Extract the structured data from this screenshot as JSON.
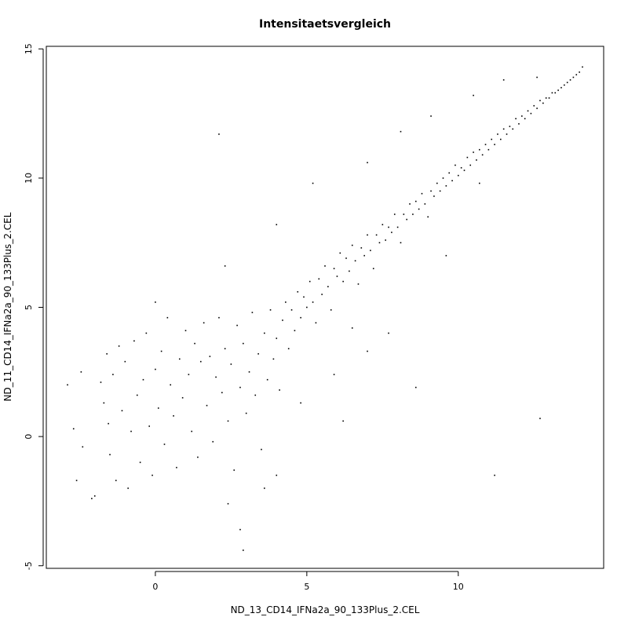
{
  "chart_data": {
    "type": "scatter",
    "title": "Intensitaetsvergleich",
    "xlabel": "ND_13_CD14_IFNa2a_90_133Plus_2.CEL",
    "ylabel": "ND_11_CD14_IFNa2a_90_133Plus_2.CEL",
    "xlim": [
      -3.6,
      14.8
    ],
    "ylim": [
      -5.1,
      15.1
    ],
    "x_ticks": [
      0,
      5,
      10
    ],
    "y_ticks": [
      -5,
      0,
      5,
      10,
      15
    ],
    "grid": false,
    "legend": "none",
    "point_color": "#000000",
    "series": [
      {
        "points": [
          [
            -2.9,
            2.0
          ],
          [
            -2.7,
            0.3
          ],
          [
            -2.6,
            -1.7
          ],
          [
            -2.45,
            2.5
          ],
          [
            -2.4,
            -0.4
          ],
          [
            -2.1,
            -2.4
          ],
          [
            -2.0,
            -2.3
          ],
          [
            -1.8,
            2.1
          ],
          [
            -1.7,
            1.3
          ],
          [
            -1.6,
            3.2
          ],
          [
            -1.55,
            0.5
          ],
          [
            -1.5,
            -0.7
          ],
          [
            -1.4,
            2.4
          ],
          [
            -1.3,
            -1.7
          ],
          [
            -1.2,
            3.5
          ],
          [
            -1.1,
            1.0
          ],
          [
            -1.0,
            2.9
          ],
          [
            -0.9,
            -2.0
          ],
          [
            -0.8,
            0.2
          ],
          [
            -0.7,
            3.7
          ],
          [
            -0.6,
            1.6
          ],
          [
            -0.5,
            -1.0
          ],
          [
            -0.4,
            2.2
          ],
          [
            -0.3,
            4.0
          ],
          [
            -0.2,
            0.4
          ],
          [
            -0.1,
            -1.5
          ],
          [
            0.0,
            2.6
          ],
          [
            0.1,
            1.1
          ],
          [
            0.2,
            3.3
          ],
          [
            0.3,
            -0.3
          ],
          [
            0.4,
            4.6
          ],
          [
            0.5,
            2.0
          ],
          [
            0.6,
            0.8
          ],
          [
            0.7,
            -1.2
          ],
          [
            0.8,
            3.0
          ],
          [
            0.9,
            1.5
          ],
          [
            1.0,
            4.1
          ],
          [
            1.1,
            2.4
          ],
          [
            1.2,
            0.2
          ],
          [
            1.3,
            3.6
          ],
          [
            1.4,
            -0.8
          ],
          [
            1.5,
            2.9
          ],
          [
            1.6,
            4.4
          ],
          [
            1.7,
            1.2
          ],
          [
            1.8,
            3.1
          ],
          [
            1.9,
            -0.2
          ],
          [
            2.0,
            2.3
          ],
          [
            2.1,
            4.6
          ],
          [
            2.2,
            1.7
          ],
          [
            2.3,
            3.4
          ],
          [
            2.4,
            0.6
          ],
          [
            2.5,
            2.8
          ],
          [
            2.6,
            -1.3
          ],
          [
            2.7,
            4.3
          ],
          [
            2.8,
            1.9
          ],
          [
            2.9,
            3.6
          ],
          [
            3.0,
            0.9
          ],
          [
            3.1,
            2.5
          ],
          [
            3.2,
            4.8
          ],
          [
            3.3,
            1.6
          ],
          [
            3.4,
            3.2
          ],
          [
            3.5,
            -0.5
          ],
          [
            3.6,
            4.0
          ],
          [
            3.7,
            2.2
          ],
          [
            3.8,
            4.9
          ],
          [
            3.9,
            3.0
          ],
          [
            4.0,
            3.8
          ],
          [
            4.1,
            1.8
          ],
          [
            4.2,
            4.5
          ],
          [
            4.3,
            5.2
          ],
          [
            4.4,
            3.4
          ],
          [
            4.5,
            4.9
          ],
          [
            4.6,
            4.1
          ],
          [
            4.7,
            5.6
          ],
          [
            4.8,
            4.6
          ],
          [
            4.9,
            5.4
          ],
          [
            5.0,
            5.0
          ],
          [
            5.1,
            6.0
          ],
          [
            5.2,
            5.2
          ],
          [
            5.3,
            4.4
          ],
          [
            5.4,
            6.1
          ],
          [
            5.5,
            5.5
          ],
          [
            5.6,
            6.6
          ],
          [
            5.7,
            5.8
          ],
          [
            5.8,
            4.9
          ],
          [
            5.9,
            6.5
          ],
          [
            6.0,
            6.2
          ],
          [
            6.1,
            7.1
          ],
          [
            6.2,
            6.0
          ],
          [
            6.3,
            6.9
          ],
          [
            6.4,
            6.4
          ],
          [
            6.5,
            7.4
          ],
          [
            6.6,
            6.8
          ],
          [
            6.7,
            5.9
          ],
          [
            6.8,
            7.3
          ],
          [
            6.9,
            7.0
          ],
          [
            7.0,
            7.8
          ],
          [
            7.1,
            7.2
          ],
          [
            7.2,
            6.5
          ],
          [
            7.3,
            7.8
          ],
          [
            7.4,
            7.5
          ],
          [
            7.5,
            8.2
          ],
          [
            7.6,
            7.6
          ],
          [
            7.7,
            8.1
          ],
          [
            7.8,
            7.9
          ],
          [
            7.9,
            8.6
          ],
          [
            8.0,
            8.1
          ],
          [
            8.1,
            7.5
          ],
          [
            8.2,
            8.6
          ],
          [
            8.3,
            8.4
          ],
          [
            8.4,
            9.0
          ],
          [
            8.5,
            8.6
          ],
          [
            8.6,
            9.1
          ],
          [
            8.7,
            8.8
          ],
          [
            8.8,
            9.4
          ],
          [
            8.9,
            9.0
          ],
          [
            9.0,
            8.5
          ],
          [
            9.1,
            9.5
          ],
          [
            9.2,
            9.3
          ],
          [
            9.3,
            9.8
          ],
          [
            9.4,
            9.5
          ],
          [
            9.5,
            10.0
          ],
          [
            9.6,
            9.7
          ],
          [
            9.7,
            10.2
          ],
          [
            9.8,
            9.9
          ],
          [
            9.9,
            10.5
          ],
          [
            10.0,
            10.1
          ],
          [
            10.1,
            10.4
          ],
          [
            10.2,
            10.3
          ],
          [
            10.3,
            10.8
          ],
          [
            10.4,
            10.5
          ],
          [
            10.5,
            11.0
          ],
          [
            10.6,
            10.7
          ],
          [
            10.7,
            11.1
          ],
          [
            10.8,
            10.9
          ],
          [
            10.9,
            11.3
          ],
          [
            11.0,
            11.1
          ],
          [
            11.1,
            11.5
          ],
          [
            11.2,
            11.3
          ],
          [
            11.3,
            11.7
          ],
          [
            11.4,
            11.5
          ],
          [
            11.5,
            11.9
          ],
          [
            11.6,
            11.7
          ],
          [
            11.7,
            12.0
          ],
          [
            11.8,
            11.9
          ],
          [
            11.9,
            12.3
          ],
          [
            12.0,
            12.1
          ],
          [
            12.1,
            12.4
          ],
          [
            12.2,
            12.3
          ],
          [
            12.3,
            12.6
          ],
          [
            12.4,
            12.5
          ],
          [
            12.5,
            12.8
          ],
          [
            12.6,
            12.7
          ],
          [
            12.7,
            13.0
          ],
          [
            12.8,
            12.9
          ],
          [
            12.9,
            13.1
          ],
          [
            13.0,
            13.1
          ],
          [
            13.1,
            13.3
          ],
          [
            13.2,
            13.3
          ],
          [
            13.3,
            13.4
          ],
          [
            13.4,
            13.5
          ],
          [
            13.5,
            13.6
          ],
          [
            13.6,
            13.7
          ],
          [
            13.7,
            13.8
          ],
          [
            13.8,
            13.9
          ],
          [
            13.9,
            14.0
          ],
          [
            14.0,
            14.1
          ],
          [
            14.1,
            14.3
          ],
          [
            2.1,
            11.7
          ],
          [
            5.2,
            9.8
          ],
          [
            4.0,
            8.2
          ],
          [
            2.3,
            6.6
          ],
          [
            0.0,
            5.2
          ],
          [
            7.0,
            10.6
          ],
          [
            8.1,
            11.8
          ],
          [
            9.1,
            12.4
          ],
          [
            10.5,
            13.2
          ],
          [
            11.5,
            13.8
          ],
          [
            12.6,
            13.9
          ],
          [
            8.6,
            1.9
          ],
          [
            11.2,
            -1.5
          ],
          [
            12.7,
            0.7
          ],
          [
            6.2,
            0.6
          ],
          [
            7.0,
            3.3
          ],
          [
            7.7,
            4.0
          ],
          [
            9.6,
            7.0
          ],
          [
            10.7,
            9.8
          ],
          [
            2.8,
            -3.6
          ],
          [
            2.9,
            -4.4
          ],
          [
            2.4,
            -2.6
          ],
          [
            3.6,
            -2.0
          ],
          [
            4.0,
            -1.5
          ],
          [
            4.8,
            1.3
          ],
          [
            5.9,
            2.4
          ],
          [
            6.5,
            4.2
          ]
        ]
      }
    ]
  }
}
